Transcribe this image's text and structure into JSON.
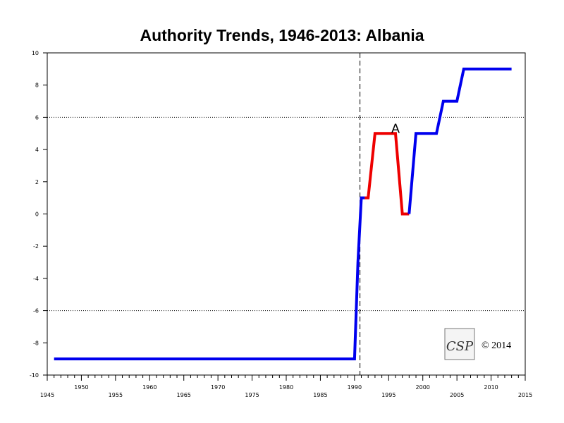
{
  "chart_data": {
    "type": "line",
    "title": "Authority Trends, 1946-2013: Albania",
    "xlabel": "",
    "ylabel": "",
    "xlim": [
      1945,
      2015
    ],
    "ylim": [
      -10,
      10
    ],
    "x_major_ticks": [
      1945,
      1950,
      1955,
      1960,
      1965,
      1970,
      1975,
      1980,
      1985,
      1990,
      1995,
      2000,
      2005,
      2010,
      2015
    ],
    "x_tick_labels": [
      "1945",
      "1950",
      "1955",
      "1960",
      "1965",
      "1970",
      "1975",
      "1980",
      "1985",
      "1990",
      "1995",
      "2000",
      "2005",
      "2010",
      "2015"
    ],
    "y_ticks": [
      -10,
      -8,
      -6,
      -4,
      -2,
      0,
      2,
      4,
      6,
      8,
      10
    ],
    "y_tick_labels": [
      "-10",
      "-8",
      "-6",
      "-4",
      "-2",
      "0",
      "2",
      "4",
      "6",
      "8",
      "10"
    ],
    "reference_lines_y": [
      6,
      -6
    ],
    "event_line_x": 1990.8,
    "series": [
      {
        "color": "#0000ee",
        "points": [
          [
            1946,
            -9
          ],
          [
            1990,
            -9
          ],
          [
            1990.5,
            -3
          ],
          [
            1991,
            1
          ],
          [
            1991.5,
            1
          ]
        ]
      },
      {
        "color": "#ee0000",
        "points": [
          [
            1991.5,
            1
          ],
          [
            1992,
            1
          ],
          [
            1993,
            5
          ],
          [
            1996,
            5
          ],
          [
            1997,
            0
          ],
          [
            1998,
            0
          ]
        ]
      },
      {
        "color": "#0000ee",
        "points": [
          [
            1998,
            0
          ],
          [
            1999,
            5
          ],
          [
            2002,
            5
          ],
          [
            2003,
            7
          ],
          [
            2005,
            7
          ],
          [
            2006,
            9
          ],
          [
            2013,
            9
          ]
        ]
      }
    ],
    "annotations": [
      {
        "text": "A",
        "x": 1996,
        "y": 5
      }
    ],
    "grid": false,
    "legend": "none",
    "logo_text": "CSP",
    "copyright": "© 2014"
  }
}
